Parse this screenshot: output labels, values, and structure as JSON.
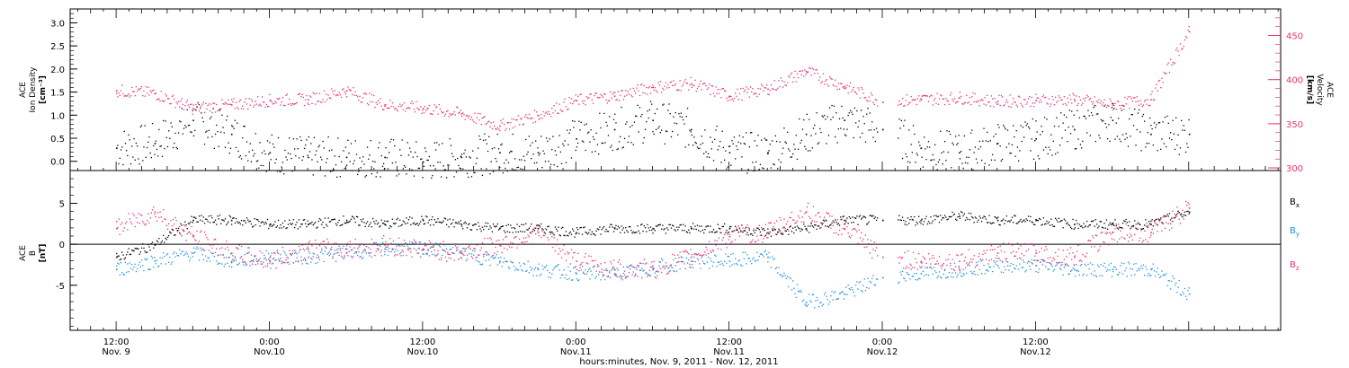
{
  "chart_data": [
    {
      "type": "scatter",
      "title": "",
      "ylabel_left": [
        "ACE",
        "Ion Density",
        "[cm⁻³]"
      ],
      "ylabel_right": [
        "ACE",
        "Velocity",
        "[km/s]"
      ],
      "ylim_left": [
        -0.2,
        3.3
      ],
      "ylim_right": [
        297,
        480
      ],
      "yticks_left": [
        "0.0",
        "0.5",
        "1.0",
        "1.5",
        "2.0",
        "2.5",
        "3.0"
      ],
      "yticks_right": [
        "300",
        "350",
        "400",
        "450"
      ],
      "series": [
        {
          "name": "",
          "axis": "left",
          "color": "#000000",
          "x": [
            0,
            3,
            6,
            9,
            12,
            15,
            18,
            21,
            24,
            27,
            30,
            33,
            36,
            39,
            42,
            45,
            48,
            51,
            54,
            57,
            60,
            63,
            66,
            69,
            72,
            75,
            78,
            81,
            84
          ],
          "values": [
            0.3,
            0.4,
            0.9,
            0.6,
            0.2,
            0.1,
            0.1,
            0.1,
            0.0,
            0.1,
            0.2,
            0.2,
            0.5,
            0.7,
            0.9,
            0.7,
            0.2,
            0.2,
            0.6,
            0.9,
            0.7,
            0.3,
            0.2,
            0.4,
            0.5,
            0.7,
            0.9,
            0.6,
            0.6
          ]
        },
        {
          "name": "",
          "axis": "right",
          "color": "#e8336d",
          "x": [
            0,
            3,
            6,
            9,
            12,
            15,
            18,
            21,
            24,
            27,
            30,
            33,
            36,
            39,
            42,
            45,
            48,
            51,
            54,
            57,
            60,
            63,
            66,
            69,
            72,
            75,
            78,
            81,
            84
          ],
          "values": [
            388,
            385,
            368,
            372,
            377,
            378,
            388,
            372,
            368,
            362,
            348,
            360,
            377,
            382,
            392,
            396,
            382,
            390,
            410,
            393,
            375,
            378,
            380,
            376,
            377,
            378,
            372,
            378,
            455
          ]
        }
      ]
    },
    {
      "type": "scatter",
      "title": "",
      "ylabel_left": [
        "ACE",
        "B",
        "[nT]"
      ],
      "ylim": [
        -10.5,
        9
      ],
      "yticks": [
        "-5",
        "0",
        "5"
      ],
      "legend_labels": [
        "Bx",
        "By",
        "Bz"
      ],
      "series": [
        {
          "name": "Bx",
          "color": "#000000",
          "x": [
            0,
            3,
            6,
            9,
            12,
            15,
            18,
            21,
            24,
            27,
            30,
            33,
            36,
            39,
            42,
            45,
            48,
            51,
            54,
            57,
            60,
            63,
            66,
            69,
            72,
            75,
            78,
            81,
            84
          ],
          "values": [
            -1.5,
            0,
            3,
            3,
            2.5,
            2.5,
            3,
            2.5,
            3,
            2.5,
            2,
            2,
            1.5,
            2,
            2,
            2,
            2,
            1.5,
            2,
            3,
            3,
            3,
            3.5,
            3,
            3,
            2.5,
            2.5,
            2.5,
            4
          ]
        },
        {
          "name": "By",
          "color": "#1f8fe0",
          "x": [
            0,
            3,
            6,
            9,
            12,
            15,
            18,
            21,
            24,
            27,
            30,
            33,
            36,
            39,
            42,
            45,
            48,
            51,
            54,
            57,
            60,
            63,
            66,
            69,
            72,
            75,
            78,
            81,
            84
          ],
          "values": [
            -3,
            -2,
            -1,
            -2,
            -1.5,
            -1.5,
            -1,
            -0.5,
            -0.5,
            -1,
            -2,
            -3,
            -3.5,
            -3.5,
            -3,
            -2,
            -2,
            -1.5,
            -7,
            -6,
            -4,
            -3.5,
            -3,
            -2.5,
            -2.5,
            -3,
            -3,
            -3,
            -6
          ]
        },
        {
          "name": "Bz",
          "color": "#e8336d",
          "x": [
            0,
            3,
            6,
            9,
            12,
            15,
            18,
            21,
            24,
            27,
            30,
            33,
            36,
            39,
            42,
            45,
            48,
            51,
            54,
            57,
            60,
            63,
            66,
            69,
            72,
            75,
            78,
            81,
            84
          ],
          "values": [
            2,
            4,
            1,
            -1,
            -2,
            -0.5,
            -0.5,
            0,
            -0.5,
            -1,
            0,
            1.5,
            -2,
            -3,
            -3,
            -1.5,
            1,
            1.5,
            4,
            2,
            -1.5,
            -2,
            -2,
            -1,
            -1,
            -1.5,
            1.5,
            1.5,
            4.5
          ]
        }
      ]
    }
  ],
  "x_axis": {
    "xlim": [
      -3.6,
      91.2
    ],
    "ticks": [
      {
        "x": 0,
        "time": "12:00",
        "date": "Nov. 9"
      },
      {
        "x": 12,
        "time": "0:00",
        "date": "Nov.10"
      },
      {
        "x": 24,
        "time": "12:00",
        "date": "Nov.10"
      },
      {
        "x": 36,
        "time": "0:00",
        "date": "Nov.11"
      },
      {
        "x": 48,
        "time": "12:00",
        "date": "Nov.11"
      },
      {
        "x": 60,
        "time": "0:00",
        "date": "Nov.12"
      },
      {
        "x": 72,
        "time": "12:00",
        "date": "Nov.12"
      }
    ],
    "label": "hours:minutes, Nov. 9, 2011 - Nov. 12, 2011"
  },
  "colors": {
    "density": "#000000",
    "velocity": "#e8336d",
    "bx": "#000000",
    "by": "#1f8fe0",
    "bz": "#e8336d"
  }
}
